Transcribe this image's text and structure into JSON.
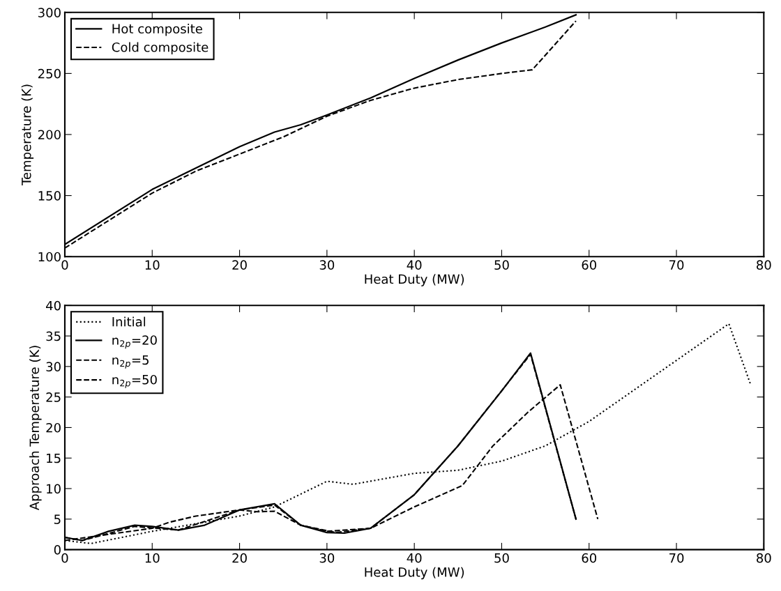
{
  "chart_data": [
    {
      "type": "line",
      "xlabel": "Heat Duty (MW)",
      "ylabel": "Temperature (K)",
      "xlim": [
        0,
        80
      ],
      "ylim": [
        100,
        300
      ],
      "xticks": [
        0,
        10,
        20,
        30,
        40,
        50,
        60,
        70,
        80
      ],
      "yticks": [
        100,
        150,
        200,
        250,
        300
      ],
      "legend": "top left",
      "grid": false,
      "series": [
        {
          "name": "Hot composite",
          "color": "#000000",
          "line_style": "solid",
          "x": [
            0,
            10,
            20,
            24,
            27,
            30,
            35,
            40,
            45,
            50,
            55,
            58.5
          ],
          "values": [
            110,
            155,
            190,
            202,
            208,
            216,
            230,
            246,
            261,
            275,
            288,
            298
          ]
        },
        {
          "name": "Cold composite",
          "color": "#000000",
          "line_style": "dashed",
          "x": [
            0,
            10,
            15,
            20,
            25,
            30,
            35,
            40,
            45,
            50,
            53.5,
            58.5
          ],
          "values": [
            107,
            152,
            170,
            184,
            198,
            215,
            228,
            238,
            245,
            250,
            253,
            293
          ]
        }
      ]
    },
    {
      "type": "line",
      "xlabel": "Heat Duty (MW)",
      "ylabel": "Approach Temperature (K)",
      "xlim": [
        0,
        80
      ],
      "ylim": [
        0,
        40
      ],
      "xticks": [
        0,
        10,
        20,
        30,
        40,
        50,
        60,
        70,
        80
      ],
      "yticks": [
        0,
        5,
        10,
        15,
        20,
        25,
        30,
        35,
        40
      ],
      "legend": "top left",
      "grid": false,
      "series": [
        {
          "name": "Initial",
          "color": "#000000",
          "line_style": "dotted",
          "x": [
            0,
            3,
            10,
            20,
            24,
            30,
            33,
            40,
            45,
            50,
            55,
            60,
            65,
            70,
            76,
            78.5
          ],
          "values": [
            1.5,
            1,
            3,
            5.5,
            7,
            11.2,
            10.7,
            12.5,
            13,
            14.5,
            17,
            21,
            26,
            31,
            37,
            27
          ]
        },
        {
          "name": "n$_{2p}$=20",
          "color": "#000000",
          "line_style": "solid",
          "x": [
            0,
            2,
            5,
            8,
            10,
            13,
            16,
            20,
            24,
            27,
            30,
            32,
            35,
            40,
            45,
            50,
            53.3,
            58.5
          ],
          "values": [
            2,
            1.5,
            3,
            4,
            3.8,
            3.2,
            4,
            6.5,
            7.5,
            4,
            2.8,
            2.7,
            3.5,
            9,
            17,
            26,
            32.2,
            5
          ]
        },
        {
          "name": "n$_{2p}$=5",
          "color": "#000000",
          "line_style": "dashed",
          "x": [
            0,
            5,
            10,
            12,
            15,
            20,
            22,
            24,
            27,
            30,
            35,
            40,
            45.5,
            49,
            53,
            56.7,
            61
          ],
          "values": [
            1.5,
            2.5,
            3.5,
            4.5,
            5.5,
            6.5,
            6.2,
            6.3,
            4,
            3,
            3.5,
            7,
            10.5,
            17,
            22.5,
            27,
            5
          ]
        },
        {
          "name": "n$_{2p}$=50",
          "color": "#000000",
          "line_style": "dashed",
          "x": [
            0,
            2,
            8,
            13,
            20,
            24,
            27,
            31,
            35,
            40,
            45,
            53.3,
            58.5
          ],
          "values": [
            2,
            1.5,
            3.8,
            3.2,
            6.5,
            7.3,
            4,
            2.8,
            3.5,
            9,
            17,
            32,
            5
          ]
        }
      ]
    }
  ]
}
